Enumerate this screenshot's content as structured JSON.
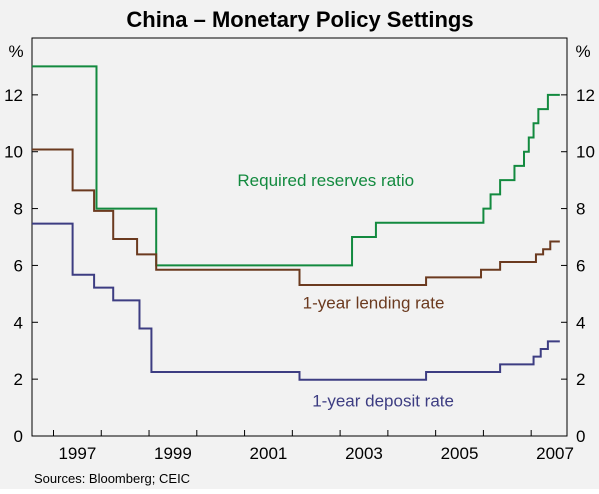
{
  "chart_data": {
    "type": "line",
    "title": "China – Monetary Policy Settings",
    "xlabel": "",
    "ylabel": "%",
    "ylabel_right": "%",
    "xlim": [
      1996.55,
      2007.75
    ],
    "ylim": [
      0,
      14
    ],
    "x_ticks": [
      1997,
      1999,
      2001,
      2003,
      2005,
      2007
    ],
    "x_tick_labels": [
      "1997",
      "1999",
      "2001",
      "2003",
      "2005",
      "2007"
    ],
    "y_ticks": [
      0,
      2,
      4,
      6,
      8,
      10,
      12
    ],
    "y_tick_labels": [
      "0",
      "2",
      "4",
      "6",
      "8",
      "10",
      "12"
    ],
    "grid": false,
    "source": "Sources: Bloomberg; CEIC",
    "colors": {
      "background": "#f2f2f2",
      "reserves": "#138a3f",
      "lending": "#6b3a1f",
      "deposit": "#3d3d82",
      "axis": "#000000"
    },
    "series": [
      {
        "name": "Required reserves ratio",
        "color": "#138a3f",
        "step": "post",
        "x": [
          1996.55,
          1997.9,
          1999.15,
          2003.25,
          2003.75,
          2006.0,
          2006.15,
          2006.35,
          2006.65,
          2006.85,
          2006.95,
          2007.05,
          2007.15,
          2007.25,
          2007.35,
          2007.45,
          2007.55,
          2007.6
        ],
        "y": [
          13.0,
          8.0,
          6.0,
          7.0,
          7.5,
          8.0,
          8.5,
          9.0,
          9.5,
          10.0,
          10.5,
          11.0,
          11.5,
          11.5,
          12.0,
          12.0,
          12.0,
          12.0
        ]
      },
      {
        "name": "1-year lending rate",
        "color": "#6b3a1f",
        "step": "post",
        "x": [
          1996.55,
          1997.4,
          1997.85,
          1998.25,
          1998.75,
          1999.15,
          2002.15,
          2004.8,
          2005.95,
          2006.35,
          2007.1,
          2007.25,
          2007.4,
          2007.5,
          2007.6
        ],
        "y": [
          10.08,
          8.64,
          7.92,
          6.93,
          6.39,
          5.85,
          5.31,
          5.58,
          5.85,
          6.12,
          6.39,
          6.57,
          6.84,
          6.84,
          6.84
        ],
        "label_anchor_x": 2003.6,
        "label_anchor_y": 4.7
      },
      {
        "name": "1-year deposit rate",
        "color": "#3d3d82",
        "step": "post",
        "x": [
          1996.55,
          1997.4,
          1997.85,
          1998.25,
          1998.8,
          1999.05,
          2002.15,
          2004.8,
          2006.35,
          2007.05,
          2007.2,
          2007.35,
          2007.5,
          2007.6
        ],
        "y": [
          7.47,
          5.67,
          5.22,
          4.77,
          3.78,
          2.25,
          1.98,
          2.25,
          2.52,
          2.79,
          3.06,
          3.33,
          3.33,
          3.33
        ]
      }
    ],
    "annotations": [
      {
        "text": "Required reserves ratio",
        "series": 0,
        "x": 2002.7,
        "y": 9.0
      },
      {
        "text": "1-year lending rate",
        "series": 1,
        "x": 2003.7,
        "y": 4.7
      },
      {
        "text": "1-year deposit rate",
        "series": 2,
        "x": 2003.9,
        "y": 1.25
      }
    ]
  }
}
